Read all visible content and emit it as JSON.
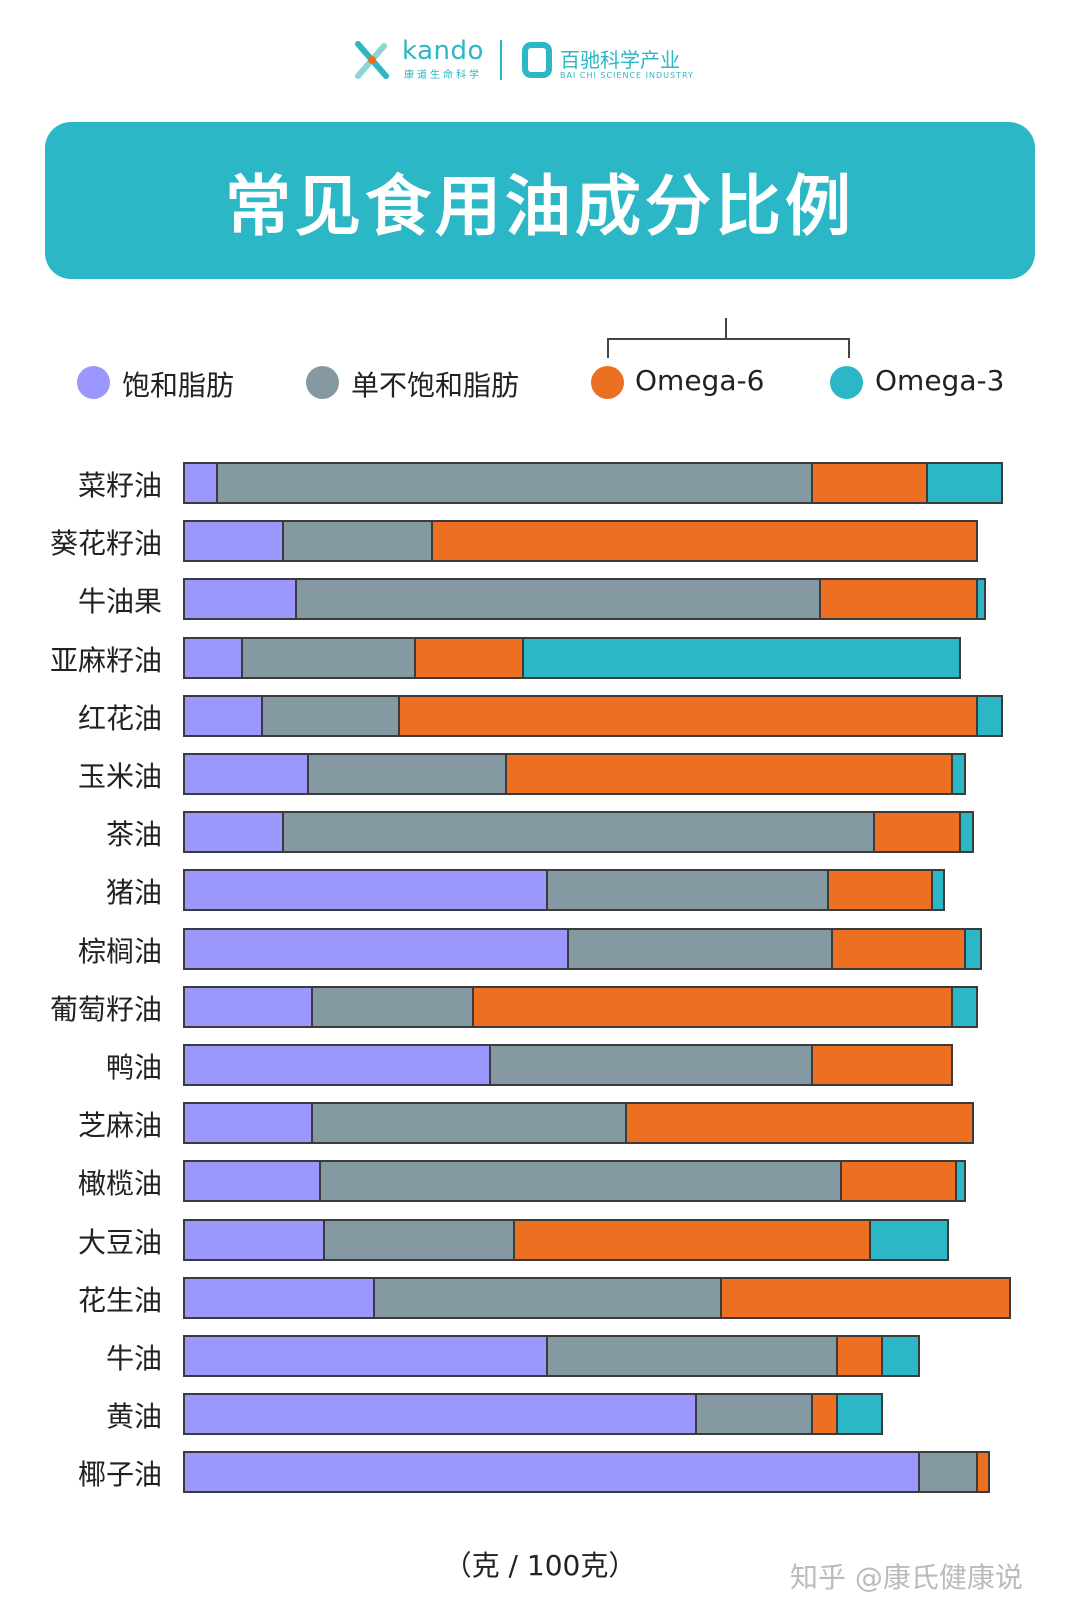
{
  "logos": {
    "kando": "kando",
    "kando_sub": "康道生命科学",
    "baichi": "百驰科学产业",
    "baichi_sub": "BAI CHI SCIENCE INDUSTRY"
  },
  "watermark": "知乎 @康氏健康说",
  "chart_data": {
    "type": "bar",
    "orientation": "horizontal",
    "stacked": true,
    "title": "常见食用油成分比例",
    "unit_label": "（克 / 100克）",
    "grid": false,
    "legend_position": "top",
    "legend_bracket_note": "Omega-6 and Omega-3 grouped by a bracket",
    "categories": [
      "菜籽油",
      "葵花籽油",
      "牛油果",
      "亚麻籽油",
      "红花油",
      "玉米油",
      "茶油",
      "猪油",
      "棕榈油",
      "葡萄籽油",
      "鸭油",
      "芝麻油",
      "橄榄油",
      "大豆油",
      "花生油",
      "牛油",
      "黄油",
      "椰子油"
    ],
    "series": [
      {
        "name": "饱和脂肪",
        "color": "#9b97fd",
        "values": [
          4,
          12,
          13.5,
          7,
          9.5,
          15,
          12,
          44,
          46.5,
          15.5,
          37,
          15.5,
          16.5,
          17,
          23,
          44,
          62,
          89
        ]
      },
      {
        "name": "单不饱和脂肪",
        "color": "#8499a2",
        "values": [
          72,
          18,
          63.5,
          21,
          16.5,
          24,
          71.5,
          34,
          32,
          19.5,
          39,
          38,
          63,
          23,
          42,
          35,
          14,
          7
        ]
      },
      {
        "name": "Omega-6",
        "color": "#ec6f22",
        "values": [
          14,
          66,
          19,
          13,
          70,
          54,
          10.5,
          12.5,
          16,
          58,
          17,
          42,
          14,
          43,
          35,
          5.5,
          3,
          1.5
        ]
      },
      {
        "name": "Omega-3",
        "color": "#2bb7c5",
        "values": [
          9,
          0,
          1,
          53,
          3,
          1.5,
          1.5,
          1.5,
          2,
          3,
          0,
          0,
          1,
          9.5,
          0,
          4.5,
          5.5,
          0
        ]
      }
    ]
  }
}
